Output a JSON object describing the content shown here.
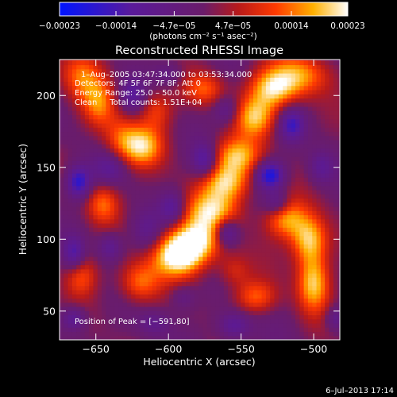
{
  "chart_data": {
    "type": "heatmap",
    "title": "Reconstructed RHESSI Image",
    "xlabel": "Heliocentric X (arcsec)",
    "ylabel": "Heliocentric Y (arcsec)",
    "xlim": [
      -675,
      -482
    ],
    "ylim": [
      30,
      225
    ],
    "xticks": [
      -650,
      -600,
      -550,
      -500
    ],
    "xtick_labels": [
      "−650",
      "−600",
      "−550",
      "−500"
    ],
    "yticks": [
      50,
      100,
      150,
      200
    ],
    "ytick_labels": [
      "50",
      "100",
      "150",
      "200"
    ],
    "colorbar": {
      "unit_label": "(photons cm⁻² s⁻¹ asec⁻²)",
      "range": [
        -0.00023,
        0.00023
      ],
      "ticks": [
        -0.00023,
        -0.00014,
        -4.7e-05,
        4.7e-05,
        0.00014,
        0.00023
      ],
      "tick_labels": [
        "−0.00023",
        "−0.00014",
        "−4.7e−05",
        "4.7e−05",
        "0.00014",
        "0.00023"
      ]
    },
    "annotations": [
      "1–Aug–2005 03:47:34.000  to 03:53:34.000",
      "Detectors: 4F 5F 6F 7F 8F, Att 0",
      "Energy Range: 25.0 – 50.0 keV",
      "Clean     Total counts: 1.51E+04"
    ],
    "peak_label": "Position of Peak = [−591,80]",
    "peak": {
      "x": -591,
      "y": 80
    },
    "footer": "6–Jul–2013 17:14",
    "features": [
      {
        "x": -593,
        "y": 88,
        "value": 1.0,
        "sx": 13,
        "sy": 10
      },
      {
        "x": -582,
        "y": 100,
        "value": 0.85,
        "sx": 14,
        "sy": 10
      },
      {
        "x": -570,
        "y": 120,
        "value": 0.75,
        "sx": 14,
        "sy": 10
      },
      {
        "x": -560,
        "y": 140,
        "value": 0.8,
        "sx": 12,
        "sy": 9
      },
      {
        "x": -553,
        "y": 158,
        "value": 0.75,
        "sx": 12,
        "sy": 9
      },
      {
        "x": -540,
        "y": 185,
        "value": 0.75,
        "sx": 10,
        "sy": 10
      },
      {
        "x": -528,
        "y": 205,
        "value": 0.85,
        "sx": 12,
        "sy": 10
      },
      {
        "x": -508,
        "y": 215,
        "value": 0.6,
        "sx": 14,
        "sy": 10
      },
      {
        "x": -660,
        "y": 215,
        "value": 0.55,
        "sx": 10,
        "sy": 12
      },
      {
        "x": -648,
        "y": 195,
        "value": 0.55,
        "sx": 8,
        "sy": 12
      },
      {
        "x": -633,
        "y": 170,
        "value": 0.45,
        "sx": 9,
        "sy": 12
      },
      {
        "x": -618,
        "y": 165,
        "value": 0.75,
        "sx": 10,
        "sy": 10
      },
      {
        "x": -608,
        "y": 190,
        "value": 0.45,
        "sx": 8,
        "sy": 10
      },
      {
        "x": -645,
        "y": 125,
        "value": 0.55,
        "sx": 8,
        "sy": 10
      },
      {
        "x": -620,
        "y": 70,
        "value": 0.6,
        "sx": 10,
        "sy": 10
      },
      {
        "x": -660,
        "y": 75,
        "value": 0.5,
        "sx": 8,
        "sy": 10
      },
      {
        "x": -520,
        "y": 115,
        "value": 0.7,
        "sx": 10,
        "sy": 10
      },
      {
        "x": -503,
        "y": 100,
        "value": 0.85,
        "sx": 9,
        "sy": 12
      },
      {
        "x": -500,
        "y": 70,
        "value": 0.85,
        "sx": 8,
        "sy": 14
      },
      {
        "x": -540,
        "y": 60,
        "value": 0.55,
        "sx": 10,
        "sy": 8
      },
      {
        "x": -555,
        "y": 78,
        "value": 0.35,
        "sx": 8,
        "sy": 8
      },
      {
        "x": -575,
        "y": 205,
        "value": 0.5,
        "sx": 10,
        "sy": 8
      },
      {
        "x": -662,
        "y": 140,
        "value": -0.8,
        "sx": 6,
        "sy": 8
      },
      {
        "x": -640,
        "y": 150,
        "value": -0.4,
        "sx": 8,
        "sy": 8
      },
      {
        "x": -575,
        "y": 155,
        "value": -0.6,
        "sx": 6,
        "sy": 8
      },
      {
        "x": -530,
        "y": 145,
        "value": -0.9,
        "sx": 7,
        "sy": 7
      },
      {
        "x": -525,
        "y": 125,
        "value": -0.5,
        "sx": 6,
        "sy": 6
      },
      {
        "x": -597,
        "y": 122,
        "value": -0.5,
        "sx": 6,
        "sy": 8
      },
      {
        "x": -615,
        "y": 105,
        "value": -0.35,
        "sx": 8,
        "sy": 10
      },
      {
        "x": -560,
        "y": 105,
        "value": -0.7,
        "sx": 6,
        "sy": 7
      },
      {
        "x": -665,
        "y": 90,
        "value": -0.55,
        "sx": 5,
        "sy": 8
      },
      {
        "x": -640,
        "y": 95,
        "value": -0.45,
        "sx": 6,
        "sy": 7
      },
      {
        "x": -555,
        "y": 40,
        "value": -0.5,
        "sx": 8,
        "sy": 7
      },
      {
        "x": -610,
        "y": 42,
        "value": -0.3,
        "sx": 8,
        "sy": 6
      },
      {
        "x": -515,
        "y": 180,
        "value": -0.6,
        "sx": 6,
        "sy": 8
      },
      {
        "x": -560,
        "y": 190,
        "value": -0.4,
        "sx": 6,
        "sy": 7
      },
      {
        "x": -625,
        "y": 200,
        "value": -0.45,
        "sx": 6,
        "sy": 8
      },
      {
        "x": -600,
        "y": 215,
        "value": -0.3,
        "sx": 7,
        "sy": 6
      },
      {
        "x": -495,
        "y": 150,
        "value": -0.4,
        "sx": 6,
        "sy": 8
      },
      {
        "x": -590,
        "y": 60,
        "value": -0.3,
        "sx": 6,
        "sy": 6
      },
      {
        "x": -665,
        "y": 45,
        "value": -0.5,
        "sx": 6,
        "sy": 6
      },
      {
        "x": -485,
        "y": 45,
        "value": -0.4,
        "sx": 5,
        "sy": 6
      }
    ]
  }
}
